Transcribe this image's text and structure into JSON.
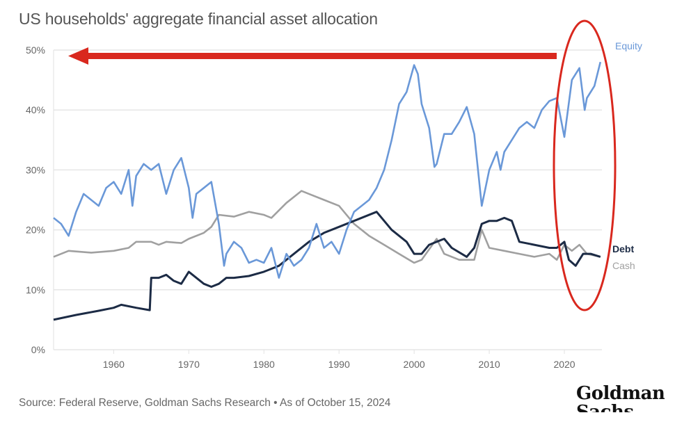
{
  "chart_data": {
    "type": "line",
    "title": "US households' aggregate financial asset allocation",
    "source": "Source: Federal Reserve, Goldman Sachs Research • As of October 15, 2024",
    "logo": "Goldman Sachs",
    "xlim": [
      1952,
      2025
    ],
    "ylim": [
      0,
      50
    ],
    "xticks": [
      "1960",
      "1970",
      "1980",
      "1990",
      "2000",
      "2010",
      "2020"
    ],
    "xtick_values": [
      1960,
      1970,
      1980,
      1990,
      2000,
      2010,
      2020
    ],
    "yticks": [
      "0%",
      "10%",
      "20%",
      "30%",
      "40%",
      "50%"
    ],
    "ytick_values": [
      0,
      10,
      20,
      30,
      40,
      50
    ],
    "grid": "horizontal",
    "annotations": [
      "red arrow pointing left at 50% level",
      "red ellipse around 2019-2024"
    ],
    "series": [
      {
        "name": "Equity",
        "color": "#6a98d8",
        "x": [
          1952,
          1953,
          1954,
          1955,
          1956,
          1957,
          1958,
          1959,
          1960,
          1961,
          1962,
          1962.5,
          1963,
          1964,
          1965,
          1966,
          1967,
          1968,
          1969,
          1970,
          1970.5,
          1971,
          1972,
          1973,
          1974,
          1974.7,
          1975,
          1976,
          1977,
          1978,
          1979,
          1980,
          1981,
          1982,
          1983,
          1984,
          1985,
          1986,
          1987,
          1988,
          1989,
          1990,
          1991,
          1992,
          1993,
          1994,
          1995,
          1996,
          1997,
          1998,
          1999,
          2000,
          2000.5,
          2001,
          2002,
          2002.7,
          2003,
          2004,
          2005,
          2006,
          2007,
          2008,
          2009,
          2010,
          2011,
          2011.5,
          2012,
          2013,
          2014,
          2015,
          2016,
          2017,
          2018,
          2019,
          2020,
          2021,
          2022,
          2022.7,
          2023,
          2024,
          2024.8
        ],
        "values": [
          22,
          21,
          19,
          23,
          26,
          25,
          24,
          27,
          28,
          26,
          30,
          24,
          29,
          31,
          30,
          31,
          26,
          30,
          32,
          27,
          22,
          26,
          27,
          28,
          21,
          14,
          16,
          18,
          17,
          14.5,
          15,
          14.5,
          17,
          12,
          16,
          14,
          15,
          17,
          21,
          17,
          18,
          16,
          20,
          23,
          24,
          25,
          27,
          30,
          35,
          41,
          43,
          47.5,
          46,
          41,
          37,
          30.5,
          31,
          36,
          36,
          38,
          40.5,
          36,
          24,
          30,
          33,
          30,
          33,
          35,
          37,
          38,
          37,
          40,
          41.5,
          42,
          35.5,
          45,
          47,
          40,
          42,
          44,
          48
        ]
      },
      {
        "name": "Debt",
        "color": "#1c2b45",
        "x": [
          1952,
          1955,
          1958,
          1960,
          1961,
          1963,
          1964.8,
          1965,
          1966,
          1967,
          1968,
          1969,
          1970,
          1971,
          1972,
          1973,
          1974,
          1975,
          1976,
          1978,
          1980,
          1982,
          1984,
          1986,
          1988,
          1990,
          1992,
          1995,
          1997,
          1999,
          2000,
          2001,
          2002,
          2004,
          2005,
          2007,
          2008,
          2009,
          2010,
          2011,
          2012,
          2013,
          2014,
          2016,
          2018,
          2019,
          2020,
          2020.6,
          2021.5,
          2022.5,
          2023.5,
          2024.8
        ],
        "values": [
          5,
          5.8,
          6.5,
          7,
          7.5,
          7,
          6.6,
          12,
          12,
          12.5,
          11.5,
          11,
          13,
          12,
          11,
          10.5,
          11,
          12,
          12,
          12.3,
          13,
          14,
          16,
          18,
          19.5,
          20.5,
          21.5,
          23,
          20,
          18,
          16,
          16,
          17.5,
          18.5,
          17,
          15.5,
          17,
          21,
          21.5,
          21.5,
          22,
          21.5,
          18,
          17.5,
          17,
          17,
          18,
          15,
          14,
          16,
          16,
          15.5
        ]
      },
      {
        "name": "Cash",
        "color": "#a0a0a0",
        "x": [
          1952,
          1954,
          1957,
          1960,
          1962,
          1963,
          1965,
          1966,
          1967,
          1969,
          1970,
          1972,
          1973,
          1974,
          1976,
          1978,
          1980,
          1981,
          1983,
          1985,
          1986,
          1988,
          1990,
          1992,
          1994,
          1996,
          1998,
          2000,
          2001,
          2003,
          2004,
          2006,
          2008,
          2009,
          2010,
          2012,
          2014,
          2016,
          2018,
          2019,
          2020,
          2021,
          2022,
          2023,
          2024.8
        ],
        "values": [
          15.5,
          16.5,
          16.2,
          16.5,
          17,
          18,
          18,
          17.5,
          18,
          17.8,
          18.5,
          19.5,
          20.5,
          22.5,
          22.2,
          23,
          22.5,
          22,
          24.5,
          26.5,
          26,
          25,
          24,
          21,
          19,
          17.5,
          16,
          14.5,
          15,
          18.5,
          16,
          15,
          15,
          20,
          17,
          16.5,
          16,
          15.5,
          16,
          15,
          17.5,
          16.5,
          17.5,
          16,
          15.5
        ]
      }
    ]
  }
}
